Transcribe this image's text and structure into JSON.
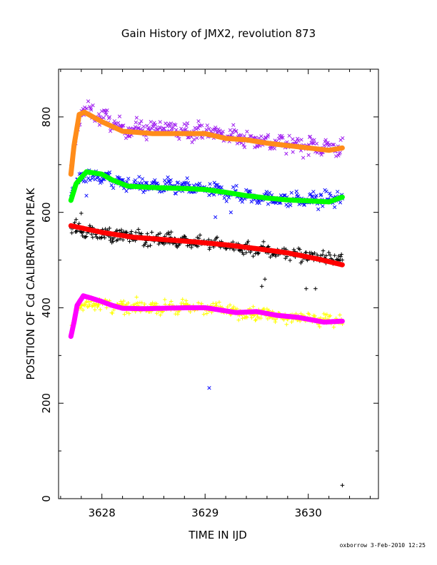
{
  "chart_data": {
    "type": "scatter",
    "title": "Gain History of JMX2, revolution 873",
    "xlabel": "TIME IN IJD",
    "ylabel": "POSITION OF Cd CALIBRATION PEAK",
    "xlim": [
      3627.58,
      3630.68
    ],
    "ylim": [
      0,
      900
    ],
    "xticks": [
      "3628",
      "3629",
      "3630"
    ],
    "yticks": [
      "0",
      "200",
      "400",
      "600",
      "800"
    ],
    "footer": "oxborrow  3-Feb-2010 12:25",
    "grid": false,
    "colors": {
      "purple": "#a020f0",
      "orange": "#ff8c1a",
      "blue": "#1010ff",
      "green": "#00ff00",
      "black": "#000000",
      "red": "#ff0000",
      "yellow": "#ffff00",
      "magenta": "#ff00ff"
    },
    "series": [
      {
        "name": "",
        "marker": "x",
        "color": "#a020f0",
        "noise": 22,
        "trend": [
          [
            3627.7,
            685
          ],
          [
            3627.75,
            760
          ],
          [
            3627.8,
            815
          ],
          [
            3628.0,
            800
          ],
          [
            3628.2,
            775
          ],
          [
            3628.5,
            775
          ],
          [
            3628.8,
            772
          ],
          [
            3629.0,
            770
          ],
          [
            3629.4,
            755
          ],
          [
            3629.7,
            745
          ],
          [
            3630.0,
            740
          ],
          [
            3630.33,
            735
          ]
        ]
      },
      {
        "name": "",
        "marker": "line",
        "color": "#ff8c1a",
        "trend": [
          [
            3627.7,
            680
          ],
          [
            3627.73,
            740
          ],
          [
            3627.78,
            805
          ],
          [
            3627.83,
            810
          ],
          [
            3628.0,
            790
          ],
          [
            3628.2,
            770
          ],
          [
            3628.5,
            765
          ],
          [
            3628.8,
            765
          ],
          [
            3629.0,
            765
          ],
          [
            3629.2,
            755
          ],
          [
            3629.4,
            752
          ],
          [
            3629.6,
            745
          ],
          [
            3629.8,
            740
          ],
          [
            3630.0,
            735
          ],
          [
            3630.2,
            730
          ],
          [
            3630.33,
            735
          ]
        ]
      },
      {
        "name": "",
        "marker": "x",
        "color": "#1010ff",
        "noise": 18,
        "trend": [
          [
            3627.7,
            630
          ],
          [
            3627.8,
            680
          ],
          [
            3628.0,
            675
          ],
          [
            3628.2,
            660
          ],
          [
            3628.5,
            655
          ],
          [
            3628.8,
            652
          ],
          [
            3629.0,
            648
          ],
          [
            3629.4,
            635
          ],
          [
            3629.7,
            628
          ],
          [
            3630.0,
            625
          ],
          [
            3630.33,
            630
          ]
        ],
        "outliers": [
          [
            3629.04,
            232
          ],
          [
            3629.1,
            590
          ],
          [
            3629.25,
            600
          ],
          [
            3627.85,
            635
          ]
        ]
      },
      {
        "name": "",
        "marker": "line",
        "color": "#00ff00",
        "trend": [
          [
            3627.7,
            625
          ],
          [
            3627.75,
            660
          ],
          [
            3627.85,
            685
          ],
          [
            3628.0,
            680
          ],
          [
            3628.1,
            668
          ],
          [
            3628.25,
            655
          ],
          [
            3628.5,
            652
          ],
          [
            3628.8,
            650
          ],
          [
            3629.0,
            648
          ],
          [
            3629.2,
            642
          ],
          [
            3629.4,
            635
          ],
          [
            3629.6,
            630
          ],
          [
            3629.8,
            626
          ],
          [
            3630.0,
            624
          ],
          [
            3630.2,
            622
          ],
          [
            3630.33,
            632
          ]
        ]
      },
      {
        "name": "",
        "marker": "+",
        "color": "#000000",
        "noise": 18,
        "trend": [
          [
            3627.7,
            565
          ],
          [
            3628.0,
            555
          ],
          [
            3628.5,
            545
          ],
          [
            3628.9,
            540
          ],
          [
            3629.2,
            530
          ],
          [
            3629.6,
            520
          ],
          [
            3630.0,
            508
          ],
          [
            3630.33,
            500
          ]
        ],
        "outliers": [
          [
            3629.55,
            445
          ],
          [
            3629.58,
            460
          ],
          [
            3629.98,
            440
          ],
          [
            3630.07,
            440
          ],
          [
            3630.33,
            28
          ],
          [
            3627.75,
            585
          ],
          [
            3627.8,
            598
          ]
        ]
      },
      {
        "name": "",
        "marker": "line",
        "color": "#ff0000",
        "trend": [
          [
            3627.7,
            572
          ],
          [
            3628.0,
            558
          ],
          [
            3628.3,
            548
          ],
          [
            3628.6,
            543
          ],
          [
            3628.9,
            538
          ],
          [
            3629.2,
            532
          ],
          [
            3629.5,
            524
          ],
          [
            3629.8,
            515
          ],
          [
            3630.1,
            502
          ],
          [
            3630.33,
            490
          ]
        ]
      },
      {
        "name": "",
        "marker": "+",
        "color": "#ffff00",
        "noise": 16,
        "trend": [
          [
            3627.7,
            345
          ],
          [
            3627.75,
            390
          ],
          [
            3627.8,
            410
          ],
          [
            3628.0,
            408
          ],
          [
            3628.2,
            400
          ],
          [
            3628.5,
            402
          ],
          [
            3628.8,
            400
          ],
          [
            3629.0,
            400
          ],
          [
            3629.2,
            395
          ],
          [
            3629.4,
            390
          ],
          [
            3629.7,
            385
          ],
          [
            3630.0,
            378
          ],
          [
            3630.33,
            372
          ]
        ]
      },
      {
        "name": "",
        "marker": "line",
        "color": "#ff00ff",
        "trend": [
          [
            3627.7,
            340
          ],
          [
            3627.73,
            370
          ],
          [
            3627.76,
            405
          ],
          [
            3627.82,
            425
          ],
          [
            3627.9,
            420
          ],
          [
            3628.0,
            413
          ],
          [
            3628.1,
            405
          ],
          [
            3628.2,
            399
          ],
          [
            3628.4,
            398
          ],
          [
            3628.6,
            399
          ],
          [
            3628.8,
            400
          ],
          [
            3629.0,
            400
          ],
          [
            3629.1,
            397
          ],
          [
            3629.3,
            390
          ],
          [
            3629.5,
            392
          ],
          [
            3629.7,
            384
          ],
          [
            3629.9,
            380
          ],
          [
            3630.0,
            376
          ],
          [
            3630.15,
            370
          ],
          [
            3630.33,
            372
          ]
        ]
      }
    ]
  }
}
